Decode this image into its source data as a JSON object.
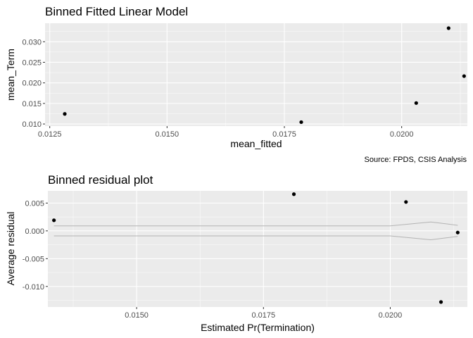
{
  "chart_data": [
    {
      "type": "scatter",
      "title": "Binned Fitted Linear Model",
      "xlabel": "mean_fitted",
      "ylabel": "mean_Term",
      "caption": "Source: FPDS, CSIS Analysis",
      "xlim": [
        0.0124,
        0.0214
      ],
      "ylim": [
        0.0095,
        0.0345
      ],
      "x_ticks": [
        {
          "value": 0.0125,
          "label": "0.0125"
        },
        {
          "value": 0.015,
          "label": "0.0150"
        },
        {
          "value": 0.0175,
          "label": "0.0175"
        },
        {
          "value": 0.02,
          "label": "0.0200"
        }
      ],
      "y_ticks": [
        {
          "value": 0.01,
          "label": "0.010"
        },
        {
          "value": 0.015,
          "label": "0.015"
        },
        {
          "value": 0.02,
          "label": "0.020"
        },
        {
          "value": 0.025,
          "label": "0.025"
        },
        {
          "value": 0.03,
          "label": "0.030"
        }
      ],
      "grid": true,
      "points": [
        {
          "x": 0.01282,
          "y": 0.01245
        },
        {
          "x": 0.01786,
          "y": 0.01045
        },
        {
          "x": 0.02031,
          "y": 0.0151
        },
        {
          "x": 0.021,
          "y": 0.0333
        },
        {
          "x": 0.02133,
          "y": 0.02165
        }
      ]
    },
    {
      "type": "scatter",
      "title": "Binned residual plot",
      "xlabel": "Estimated Pr(Termination)",
      "ylabel": "Average residual",
      "xlim": [
        0.01325,
        0.02152
      ],
      "ylim": [
        -0.0137,
        0.0072
      ],
      "x_ticks": [
        {
          "value": 0.015,
          "label": "0.0150"
        },
        {
          "value": 0.0175,
          "label": "0.0175"
        },
        {
          "value": 0.02,
          "label": "0.0200"
        }
      ],
      "y_ticks": [
        {
          "value": 0.005,
          "label": "0.005"
        },
        {
          "value": 0.0,
          "label": "0.000"
        },
        {
          "value": -0.005,
          "label": "-0.005"
        },
        {
          "value": -0.01,
          "label": "-0.010"
        }
      ],
      "grid": true,
      "points": [
        {
          "x": 0.01337,
          "y": 0.0019
        },
        {
          "x": 0.0181,
          "y": 0.0066
        },
        {
          "x": 0.02031,
          "y": 0.0052
        },
        {
          "x": 0.021,
          "y": -0.0128
        },
        {
          "x": 0.02133,
          "y": -0.0003
        }
      ],
      "bound_lines": {
        "x": [
          0.01337,
          0.0158,
          0.02,
          0.0208,
          0.02133
        ],
        "upper": [
          0.0009,
          0.0009,
          0.0009,
          0.0016,
          0.001
        ],
        "lower": [
          -0.0009,
          -0.0009,
          -0.0009,
          -0.0016,
          -0.001
        ]
      }
    }
  ],
  "colors": {
    "panel": "#ebebeb",
    "grid_major": "#ffffff",
    "point": "#000000",
    "bound_line": "#b3b3b3"
  }
}
